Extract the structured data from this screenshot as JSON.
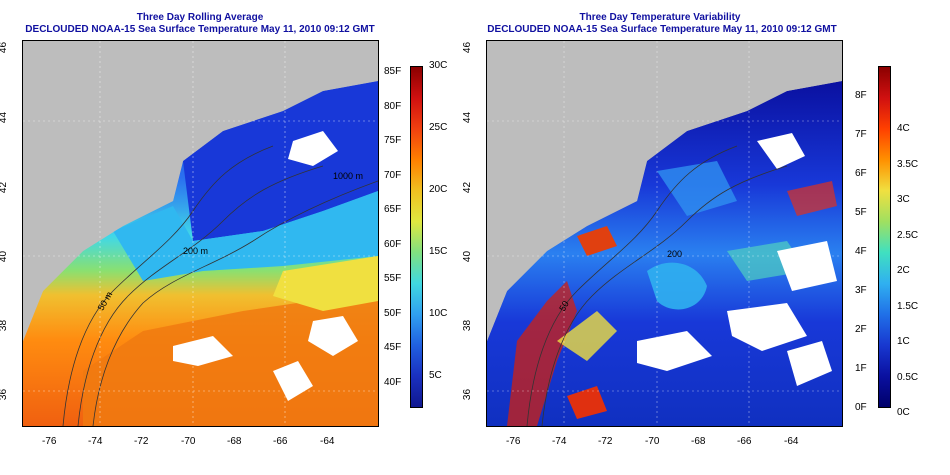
{
  "left_panel": {
    "title": "Three Day Rolling Average",
    "subtitle": "DECLOUDED NOAA-15 Sea Surface Temperature May 11, 2010 09:12 GMT",
    "y_ticks": [
      "46",
      "44",
      "42",
      "40",
      "38",
      "36"
    ],
    "x_ticks": [
      "-76",
      "-74",
      "-72",
      "-70",
      "-68",
      "-66",
      "-64"
    ],
    "contour_labels": [
      "50 m",
      "200 m",
      "1000 m"
    ],
    "colorbar_f": [
      "85F",
      "80F",
      "75F",
      "70F",
      "65F",
      "60F",
      "55F",
      "50F",
      "45F",
      "40F"
    ],
    "colorbar_c": [
      "30C",
      "25C",
      "20C",
      "15C",
      "10C",
      "5C"
    ],
    "colors": [
      "#ffffff",
      "#bdbdbd",
      "#1a3ad8",
      "#3aa0f0",
      "#40e8e8",
      "#f0e040",
      "#ff8c00",
      "#e84010",
      "#8b0000"
    ]
  },
  "right_panel": {
    "title": "Three Day Temperature Variability",
    "subtitle": "DECLOUDED NOAA-15 Sea Surface Temperature May 11, 2010 09:12 GMT",
    "y_ticks": [
      "46",
      "44",
      "42",
      "40",
      "38",
      "36"
    ],
    "x_ticks": [
      "-76",
      "-74",
      "-72",
      "-70",
      "-68",
      "-66",
      "-64"
    ],
    "contour_labels": [
      "200",
      "50"
    ],
    "colorbar_f": [
      "8F",
      "7F",
      "6F",
      "5F",
      "4F",
      "3F",
      "2F",
      "1F",
      "0F"
    ],
    "colorbar_c": [
      "4C",
      "3.5C",
      "3C",
      "2.5C",
      "2C",
      "1.5C",
      "1C",
      "0.5C",
      "0C"
    ],
    "colors": [
      "#ffffff",
      "#bdbdbd",
      "#00007a",
      "#1838e0",
      "#30a0f0",
      "#40e0c0",
      "#e8e840",
      "#ff8000",
      "#c00000"
    ]
  }
}
